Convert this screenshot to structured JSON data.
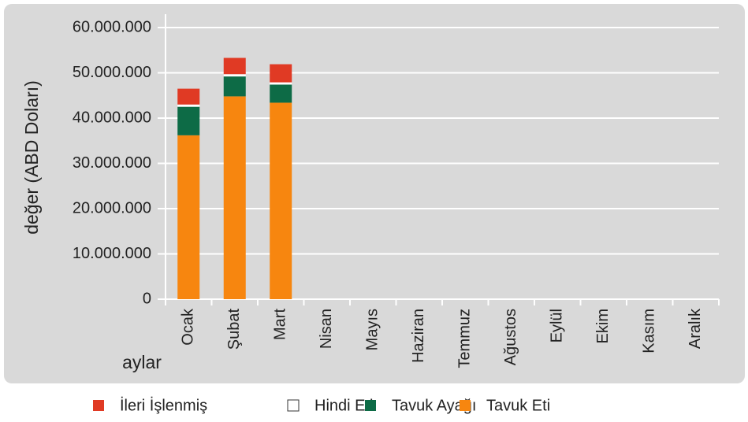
{
  "chart_data": {
    "type": "bar",
    "stacked": true,
    "y_label": "değer (ABD Doları)",
    "x_label": "aylar",
    "categories": [
      "Ocak",
      "Şubat",
      "Mart",
      "Nisan",
      "Mayıs",
      "Haziran",
      "Temmuz",
      "Ağustos",
      "Eylül",
      "Ekim",
      "Kasım",
      "Aralık"
    ],
    "series": [
      {
        "name": "İleri İşlenmiş",
        "color": "#e03a24",
        "values": [
          3500000,
          3600000,
          4000000,
          null,
          null,
          null,
          null,
          null,
          null,
          null,
          null,
          null
        ]
      },
      {
        "name": "Hindi Eti",
        "color": "#ffffff",
        "values": [
          500000,
          500000,
          500000,
          null,
          null,
          null,
          null,
          null,
          null,
          null,
          null,
          null
        ]
      },
      {
        "name": "Tavuk Ayağı",
        "color": "#0d6b46",
        "values": [
          6300000,
          4400000,
          4000000,
          null,
          null,
          null,
          null,
          null,
          null,
          null,
          null,
          null
        ]
      },
      {
        "name": "Tavuk Eti",
        "color": "#f7860f",
        "values": [
          36200000,
          44800000,
          43400000,
          null,
          null,
          null,
          null,
          null,
          null,
          null,
          null,
          null
        ]
      }
    ],
    "ylim": [
      0,
      60000000
    ],
    "yticks": [
      0,
      {
        "value": 10000000,
        "label": "10.000.000"
      },
      {
        "value": 20000000,
        "label": "20.000.000"
      },
      {
        "value": 30000000,
        "label": "30.000.000"
      },
      {
        "value": 40000000,
        "label": "40.000.000"
      },
      {
        "value": 50000000,
        "label": "50.000.000"
      },
      {
        "value": 60000000,
        "label": "60.000.000"
      }
    ],
    "grid": true,
    "legend": "bottom"
  }
}
